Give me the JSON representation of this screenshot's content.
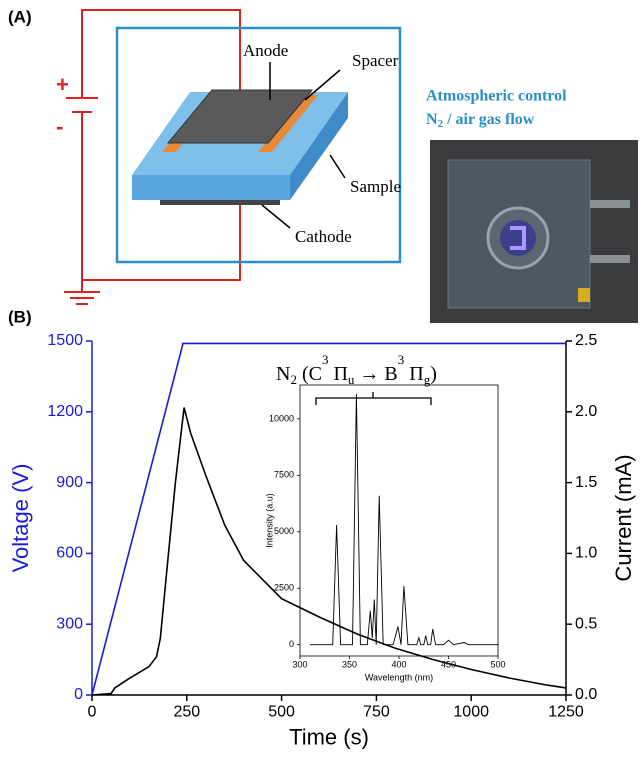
{
  "figure": {
    "panel_a_label": "(A)",
    "panel_b_label": "(B)"
  },
  "diagram": {
    "plus": "+",
    "minus": "-",
    "anode": "Anode",
    "spacer": "Spacer",
    "sample": "Sample",
    "cathode": "Cathode",
    "atmosphere_title": "Atmospheric control",
    "atmosphere_flow_parts": [
      "N",
      "2",
      " / air gas flow"
    ]
  },
  "chart_data": [
    {
      "type": "line",
      "xlabel": "Time (s)",
      "ylabel": "Voltage (V)",
      "y2label": "Current (mA)",
      "xlim": [
        0,
        1250
      ],
      "xticks": [
        0,
        250,
        500,
        750,
        1000,
        1250
      ],
      "ylim": [
        0,
        1500
      ],
      "yticks": [
        0,
        300,
        600,
        900,
        1200,
        1500
      ],
      "y2lim": [
        0,
        2.5
      ],
      "y2ticks": [
        {
          "value": 0,
          "label": "0.0"
        },
        0.5,
        {
          "value": 1,
          "label": "1.0"
        },
        1.5,
        {
          "value": 2,
          "label": "2.0"
        },
        2.5
      ],
      "grid": false,
      "series": [
        {
          "color": "#1a1adb",
          "axis": "y",
          "x": [
            0,
            240,
            1250
          ],
          "values": [
            0,
            1490,
            1490
          ]
        },
        {
          "color": "#000000",
          "axis": "y2",
          "x": [
            0,
            50,
            60,
            100,
            150,
            170,
            180,
            200,
            220,
            235,
            243,
            260,
            300,
            350,
            400,
            500,
            600,
            700,
            800,
            900,
            1000,
            1100,
            1200,
            1250
          ],
          "values": [
            0,
            0.01,
            0.05,
            0.12,
            0.2,
            0.27,
            0.4,
            0.95,
            1.5,
            1.85,
            2.03,
            1.85,
            1.55,
            1.2,
            0.95,
            0.68,
            0.55,
            0.43,
            0.33,
            0.25,
            0.18,
            0.12,
            0.07,
            0.05
          ]
        }
      ]
    },
    {
      "type": "line",
      "xlabel": "Wavelength (nm)",
      "ylabel": "Intensity (a.u)",
      "annotation_parts": [
        "N",
        "2",
        " (C",
        "3",
        " Π",
        "u",
        " → B",
        "3",
        " Π",
        "g",
        ")"
      ],
      "xlim": [
        300,
        500
      ],
      "xticks": [
        300,
        350,
        400,
        450,
        500
      ],
      "ylim": [
        -500,
        11500
      ],
      "yticks": [
        0,
        2500,
        5000,
        7500,
        10000
      ],
      "series": [
        {
          "color": "#000000",
          "x": [
            310,
            333,
            337,
            341,
            350,
            353,
            357,
            361,
            368,
            371,
            373,
            375,
            377,
            380,
            384,
            394,
            399,
            402,
            405,
            409,
            418,
            420,
            422,
            425,
            427,
            429,
            432,
            434,
            437,
            445,
            450,
            455,
            466,
            470,
            500
          ],
          "values": [
            0,
            0,
            5300,
            0,
            0,
            0,
            11100,
            0,
            0,
            1500,
            300,
            2000,
            0,
            6600,
            0,
            0,
            800,
            0,
            2600,
            0,
            0,
            300,
            0,
            0,
            400,
            0,
            0,
            700,
            0,
            0,
            200,
            0,
            100,
            0,
            0
          ]
        }
      ]
    }
  ]
}
